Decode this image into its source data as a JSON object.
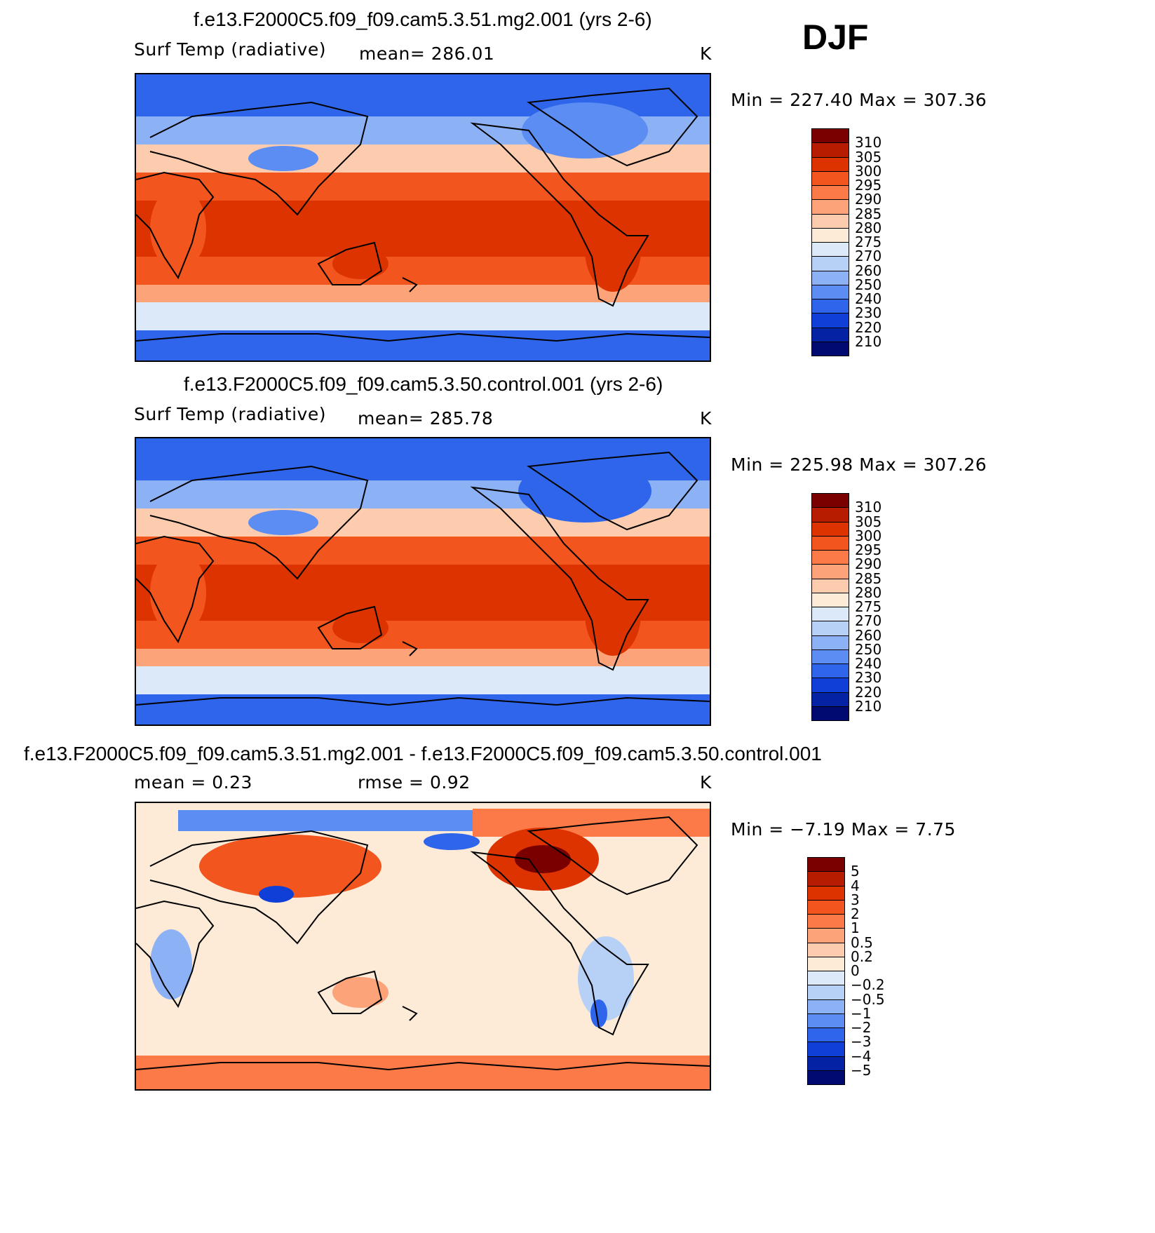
{
  "season_label": "DJF",
  "panels": [
    {
      "id": "test",
      "title": "f.e13.F2000C5.f09_f09.cam5.3.51.mg2.001 (yrs 2-6)",
      "variable_label": "Surf Temp (radiative)",
      "stat_text": "mean=  286.01",
      "units": "K",
      "range_text": "Min  =  227.40  Max  =  307.36",
      "colorbar": {
        "levels": [
          "310",
          "305",
          "300",
          "295",
          "290",
          "285",
          "280",
          "275",
          "270",
          "260",
          "250",
          "240",
          "230",
          "220",
          "210"
        ],
        "colors": [
          "#7a0000",
          "#b81c00",
          "#dd3300",
          "#f2551d",
          "#fb7a48",
          "#fca37a",
          "#fdcbad",
          "#fdebd8",
          "#dce9f8",
          "#b7d0f6",
          "#8cb2f5",
          "#5b8df2",
          "#2e65ea",
          "#0f3fd6",
          "#0422a4",
          "#000a70"
        ]
      }
    },
    {
      "id": "control",
      "title": "f.e13.F2000C5.f09_f09.cam5.3.50.control.001 (yrs 2-6)",
      "variable_label": "Surf Temp (radiative)",
      "stat_text": "mean=  285.78",
      "units": "K",
      "range_text": "Min  =  225.98  Max  =  307.26",
      "colorbar": {
        "levels": [
          "310",
          "305",
          "300",
          "295",
          "290",
          "285",
          "280",
          "275",
          "270",
          "260",
          "250",
          "240",
          "230",
          "220",
          "210"
        ],
        "colors": [
          "#7a0000",
          "#b81c00",
          "#dd3300",
          "#f2551d",
          "#fb7a48",
          "#fca37a",
          "#fdcbad",
          "#fdebd8",
          "#dce9f8",
          "#b7d0f6",
          "#8cb2f5",
          "#5b8df2",
          "#2e65ea",
          "#0f3fd6",
          "#0422a4",
          "#000a70"
        ]
      }
    },
    {
      "id": "difference",
      "title": "f.e13.F2000C5.f09_f09.cam5.3.51.mg2.001 - f.e13.F2000C5.f09_f09.cam5.3.50.control.001",
      "stat_text": "mean =      0.23",
      "stat2_text": "rmse =      0.92",
      "units": "K",
      "range_text": "Min  =    −7.19  Max  =      7.75",
      "colorbar": {
        "levels": [
          "5",
          "4",
          "3",
          "2",
          "1",
          "0.5",
          "0.2",
          "0",
          "−0.2",
          "−0.5",
          "−1",
          "−2",
          "−3",
          "−4",
          "−5"
        ],
        "colors": [
          "#7a0000",
          "#b81c00",
          "#dd3300",
          "#f2551d",
          "#fb7a48",
          "#fca37a",
          "#fdcbad",
          "#fdebd8",
          "#dce9f8",
          "#b7d0f6",
          "#8cb2f5",
          "#5b8df2",
          "#2e65ea",
          "#0f3fd6",
          "#0422a4",
          "#000a70"
        ]
      }
    }
  ]
}
